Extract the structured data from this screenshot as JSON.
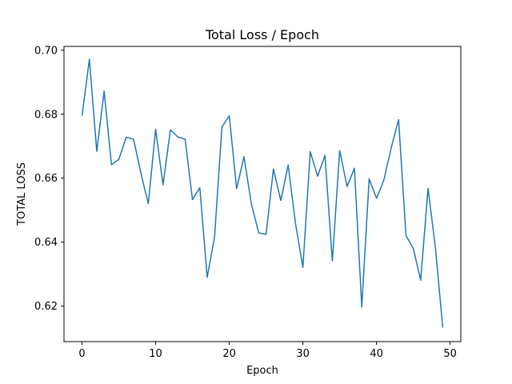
{
  "chart_data": {
    "type": "line",
    "title": "Total Loss / Epoch",
    "xlabel": "Epoch",
    "ylabel": "TOTAL LOSS",
    "xlim": [
      -2.45,
      51.45
    ],
    "ylim": [
      0.6089,
      0.7012
    ],
    "xticks": [
      0,
      10,
      20,
      30,
      40,
      50
    ],
    "yticks": [
      0.62,
      0.64,
      0.66,
      0.68,
      0.7
    ],
    "ytick_labels": [
      "0.62",
      "0.64",
      "0.66",
      "0.68",
      "0.70"
    ],
    "grid": false,
    "series": [
      {
        "color": "#1f77b4",
        "x": [
          0,
          1,
          2,
          3,
          4,
          5,
          6,
          7,
          8,
          9,
          10,
          11,
          12,
          13,
          14,
          15,
          16,
          17,
          18,
          19,
          20,
          21,
          22,
          23,
          24,
          25,
          26,
          27,
          28,
          29,
          30,
          31,
          32,
          33,
          34,
          35,
          36,
          37,
          38,
          39,
          40,
          41,
          42,
          43,
          44,
          45,
          46,
          47,
          48,
          49
        ],
        "values": [
          0.6795,
          0.6972,
          0.6684,
          0.6872,
          0.6642,
          0.6659,
          0.6728,
          0.6722,
          0.6615,
          0.652,
          0.6753,
          0.6579,
          0.6751,
          0.6729,
          0.6722,
          0.6533,
          0.657,
          0.629,
          0.6416,
          0.676,
          0.6795,
          0.6567,
          0.6667,
          0.652,
          0.6429,
          0.6424,
          0.6629,
          0.653,
          0.6641,
          0.6458,
          0.6321,
          0.6683,
          0.6606,
          0.6671,
          0.6341,
          0.6686,
          0.6574,
          0.6631,
          0.6197,
          0.6598,
          0.6537,
          0.6594,
          0.6695,
          0.6783,
          0.6421,
          0.638,
          0.6281,
          0.6568,
          0.6383,
          0.6133
        ]
      }
    ]
  }
}
